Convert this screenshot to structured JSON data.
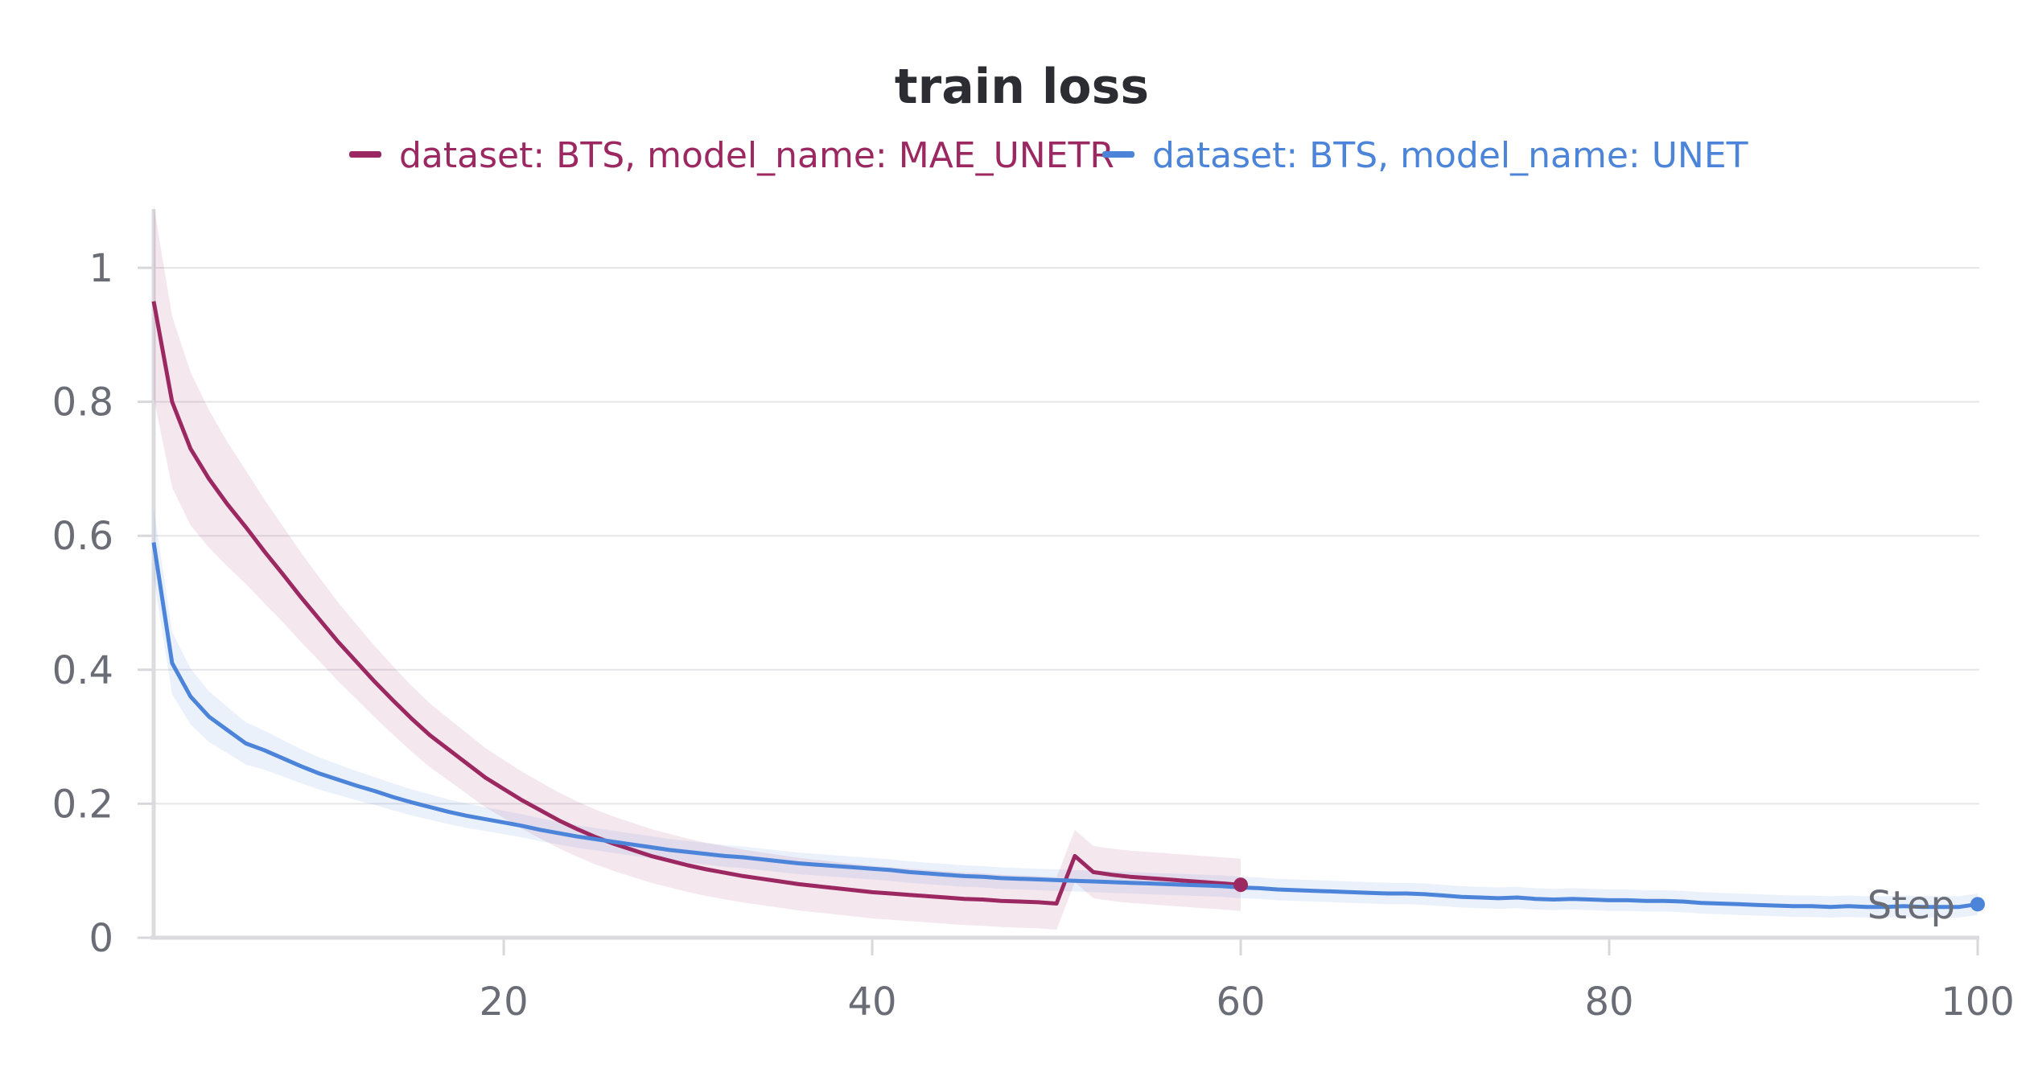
{
  "chart_data": {
    "type": "line",
    "title": "train loss",
    "xlabel": "Step",
    "ylabel": "",
    "xlim": [
      0,
      100
    ],
    "ylim": [
      0,
      1.0
    ],
    "x_ticks": [
      20,
      40,
      60,
      80,
      100
    ],
    "y_ticks": [
      0,
      0.2,
      0.4,
      0.6,
      0.8,
      1
    ],
    "grid": true,
    "legend_position": "top",
    "series": [
      {
        "name": "dataset: BTS, model_name: MAE_UNETR",
        "color": "#9c2862",
        "x": [
          1,
          2,
          3,
          4,
          5,
          6,
          7,
          8,
          9,
          10,
          11,
          12,
          13,
          14,
          15,
          16,
          17,
          18,
          19,
          20,
          21,
          22,
          23,
          24,
          25,
          26,
          27,
          28,
          29,
          30,
          31,
          32,
          33,
          34,
          35,
          36,
          37,
          38,
          39,
          40,
          41,
          42,
          43,
          44,
          45,
          46,
          47,
          48,
          49,
          50,
          51,
          52,
          53,
          54,
          55,
          56,
          57,
          58,
          59,
          60
        ],
        "y": [
          0.95,
          0.8,
          0.73,
          0.685,
          0.647,
          0.613,
          0.577,
          0.543,
          0.508,
          0.475,
          0.442,
          0.412,
          0.382,
          0.354,
          0.327,
          0.302,
          0.281,
          0.26,
          0.239,
          0.222,
          0.205,
          0.19,
          0.175,
          0.162,
          0.15,
          0.14,
          0.131,
          0.122,
          0.115,
          0.108,
          0.102,
          0.097,
          0.092,
          0.088,
          0.084,
          0.08,
          0.077,
          0.074,
          0.071,
          0.068,
          0.066,
          0.064,
          0.062,
          0.06,
          0.058,
          0.057,
          0.055,
          0.054,
          0.053,
          0.051,
          0.122,
          0.098,
          0.094,
          0.091,
          0.089,
          0.087,
          0.085,
          0.083,
          0.081,
          0.079
        ],
        "band": 0.035
      },
      {
        "name": "dataset: BTS, model_name: UNET",
        "color": "#4c84d9",
        "x": [
          1,
          2,
          3,
          4,
          5,
          6,
          7,
          8,
          9,
          10,
          11,
          12,
          13,
          14,
          15,
          16,
          17,
          18,
          19,
          20,
          21,
          22,
          23,
          24,
          25,
          26,
          27,
          28,
          29,
          30,
          31,
          32,
          33,
          34,
          35,
          36,
          37,
          38,
          39,
          40,
          41,
          42,
          43,
          44,
          45,
          46,
          47,
          48,
          49,
          50,
          51,
          52,
          53,
          54,
          55,
          56,
          57,
          58,
          59,
          60,
          61,
          62,
          63,
          64,
          65,
          66,
          67,
          68,
          69,
          70,
          71,
          72,
          73,
          74,
          75,
          76,
          77,
          78,
          79,
          80,
          81,
          82,
          83,
          84,
          85,
          86,
          87,
          88,
          89,
          90,
          91,
          92,
          93,
          94,
          95,
          96,
          97,
          98,
          99,
          100
        ],
        "y": [
          0.59,
          0.41,
          0.36,
          0.33,
          0.31,
          0.29,
          0.28,
          0.268,
          0.256,
          0.245,
          0.236,
          0.227,
          0.219,
          0.21,
          0.202,
          0.195,
          0.188,
          0.182,
          0.177,
          0.172,
          0.167,
          0.161,
          0.156,
          0.151,
          0.147,
          0.143,
          0.139,
          0.135,
          0.131,
          0.128,
          0.125,
          0.122,
          0.12,
          0.117,
          0.114,
          0.111,
          0.109,
          0.107,
          0.105,
          0.103,
          0.101,
          0.098,
          0.096,
          0.094,
          0.092,
          0.091,
          0.089,
          0.088,
          0.087,
          0.086,
          0.085,
          0.084,
          0.083,
          0.082,
          0.081,
          0.08,
          0.079,
          0.078,
          0.077,
          0.075,
          0.074,
          0.072,
          0.071,
          0.07,
          0.069,
          0.068,
          0.067,
          0.066,
          0.066,
          0.065,
          0.063,
          0.061,
          0.06,
          0.059,
          0.06,
          0.058,
          0.057,
          0.058,
          0.057,
          0.056,
          0.056,
          0.055,
          0.055,
          0.054,
          0.052,
          0.051,
          0.05,
          0.049,
          0.048,
          0.047,
          0.047,
          0.046,
          0.047,
          0.046,
          0.046,
          0.047,
          0.046,
          0.046,
          0.046,
          0.05
        ],
        "band": 0.012
      }
    ]
  }
}
